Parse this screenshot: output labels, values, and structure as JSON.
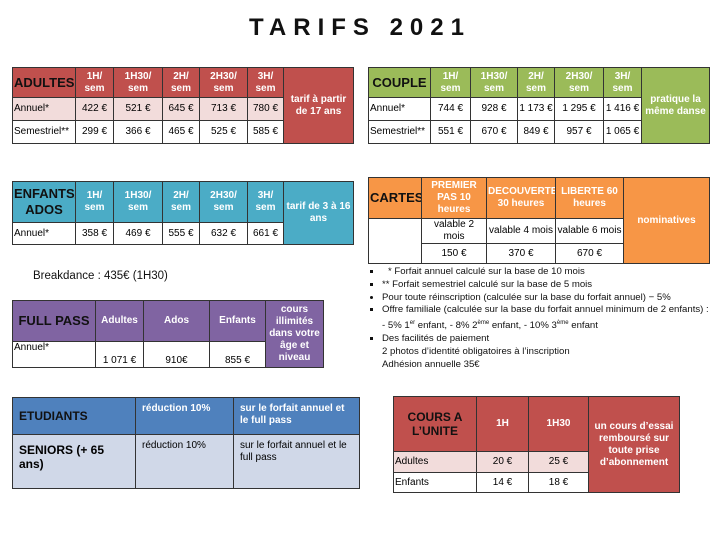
{
  "title": "TARIFS 2021",
  "adultes": {
    "title": "ADULTES",
    "cols": [
      "1H/ sem",
      "1H30/ sem",
      "2H/ sem",
      "2H30/ sem",
      "3H/ sem"
    ],
    "side": "tarif à partir de 17 ans",
    "rows": [
      {
        "label": "Annuel*",
        "values": [
          "422 €",
          "521 €",
          "645 €",
          "713 €",
          "780 €"
        ]
      },
      {
        "label": "Semestriel**",
        "values": [
          "299 €",
          "366 €",
          "465 €",
          "525 €",
          "585 €"
        ]
      }
    ]
  },
  "enfants": {
    "title": "ENFANTS/ ADOS",
    "cols": [
      "1H/ sem",
      "1H30/ sem",
      "2H/ sem",
      "2H30/ sem",
      "3H/ sem"
    ],
    "side": "tarif de 3 à 16 ans",
    "rows": [
      {
        "label": "Annuel*",
        "values": [
          "358 €",
          "469 €",
          "555 €",
          "632 €",
          "661 €"
        ]
      }
    ]
  },
  "couple": {
    "title": "COUPLE",
    "cols": [
      "1H/ sem",
      "1H30/ sem",
      "2H/ sem",
      "2H30/ sem",
      "3H/ sem"
    ],
    "side": "pratique la même danse",
    "rows": [
      {
        "label": "Annuel*",
        "values": [
          "744 €",
          "928 €",
          "1 173 €",
          "1 295 €",
          "1 416 €"
        ]
      },
      {
        "label": "Semestriel**",
        "values": [
          "551 €",
          "670 €",
          "849 €",
          "957 €",
          "1 065 €"
        ]
      }
    ]
  },
  "cartes": {
    "title": "CARTES",
    "cols": [
      "PREMIER PAS 10 heures",
      "DECOUVERTE 30 heures",
      "LIBERTE 60 heures"
    ],
    "side": "nominatives",
    "validity": [
      "valable 2 mois",
      "valable 4 mois",
      "valable 6 mois"
    ],
    "prices": [
      "150 €",
      "370 €",
      "670 €"
    ]
  },
  "breakdance": "Breakdance : 435€ (1H30)",
  "fullpass": {
    "title": "FULL PASS",
    "cols": [
      "Adultes",
      "Ados",
      "Enfants"
    ],
    "side": "cours illimités dans votre âge et niveau",
    "row": {
      "label": "Annuel*",
      "values": [
        "1 071 €",
        "910€",
        "855 €"
      ]
    }
  },
  "etudiants": {
    "title": "ETUDIANTS",
    "reduction": "réduction 10%",
    "scope": "sur le forfait annuel et le full pass"
  },
  "seniors": {
    "title": "SENIORS (+ 65 ans)",
    "reduction": "réduction 10%",
    "scope": "sur le forfait annuel et le full pass"
  },
  "notes": {
    "n1": "* Forfait annuel calculé sur la base de 10 mois",
    "n2": "** Forfait semestriel calculé sur la base de 5 mois",
    "n3": "Pour toute réinscription (calculée sur la base du forfait annuel) − 5%",
    "n4": "Offre familiale (calculée sur la base du forfait annuel minimum de 2 enfants) :",
    "n4a": "- 5% 1",
    "n4a_sup": "er",
    "n4b": " enfant, - 8% 2",
    "n4b_sup": "ème",
    "n4c": " enfant, - 10% 3",
    "n4c_sup": "ème",
    "n4d": " enfant",
    "n5": "Des facilités  de paiement",
    "n5b": "2 photos d’identité obligatoires à l’inscription",
    "n5c": "Adhésion annuelle 35€"
  },
  "unite": {
    "title": "COURS A L’UNITE",
    "cols": [
      "1H",
      "1H30"
    ],
    "side": "un cours d’essai remboursé sur toute prise d’abonnement",
    "rows": [
      {
        "label": "Adultes",
        "values": [
          "20 €",
          "25 €"
        ]
      },
      {
        "label": "Enfants",
        "values": [
          "14 €",
          "18 €"
        ]
      }
    ]
  }
}
